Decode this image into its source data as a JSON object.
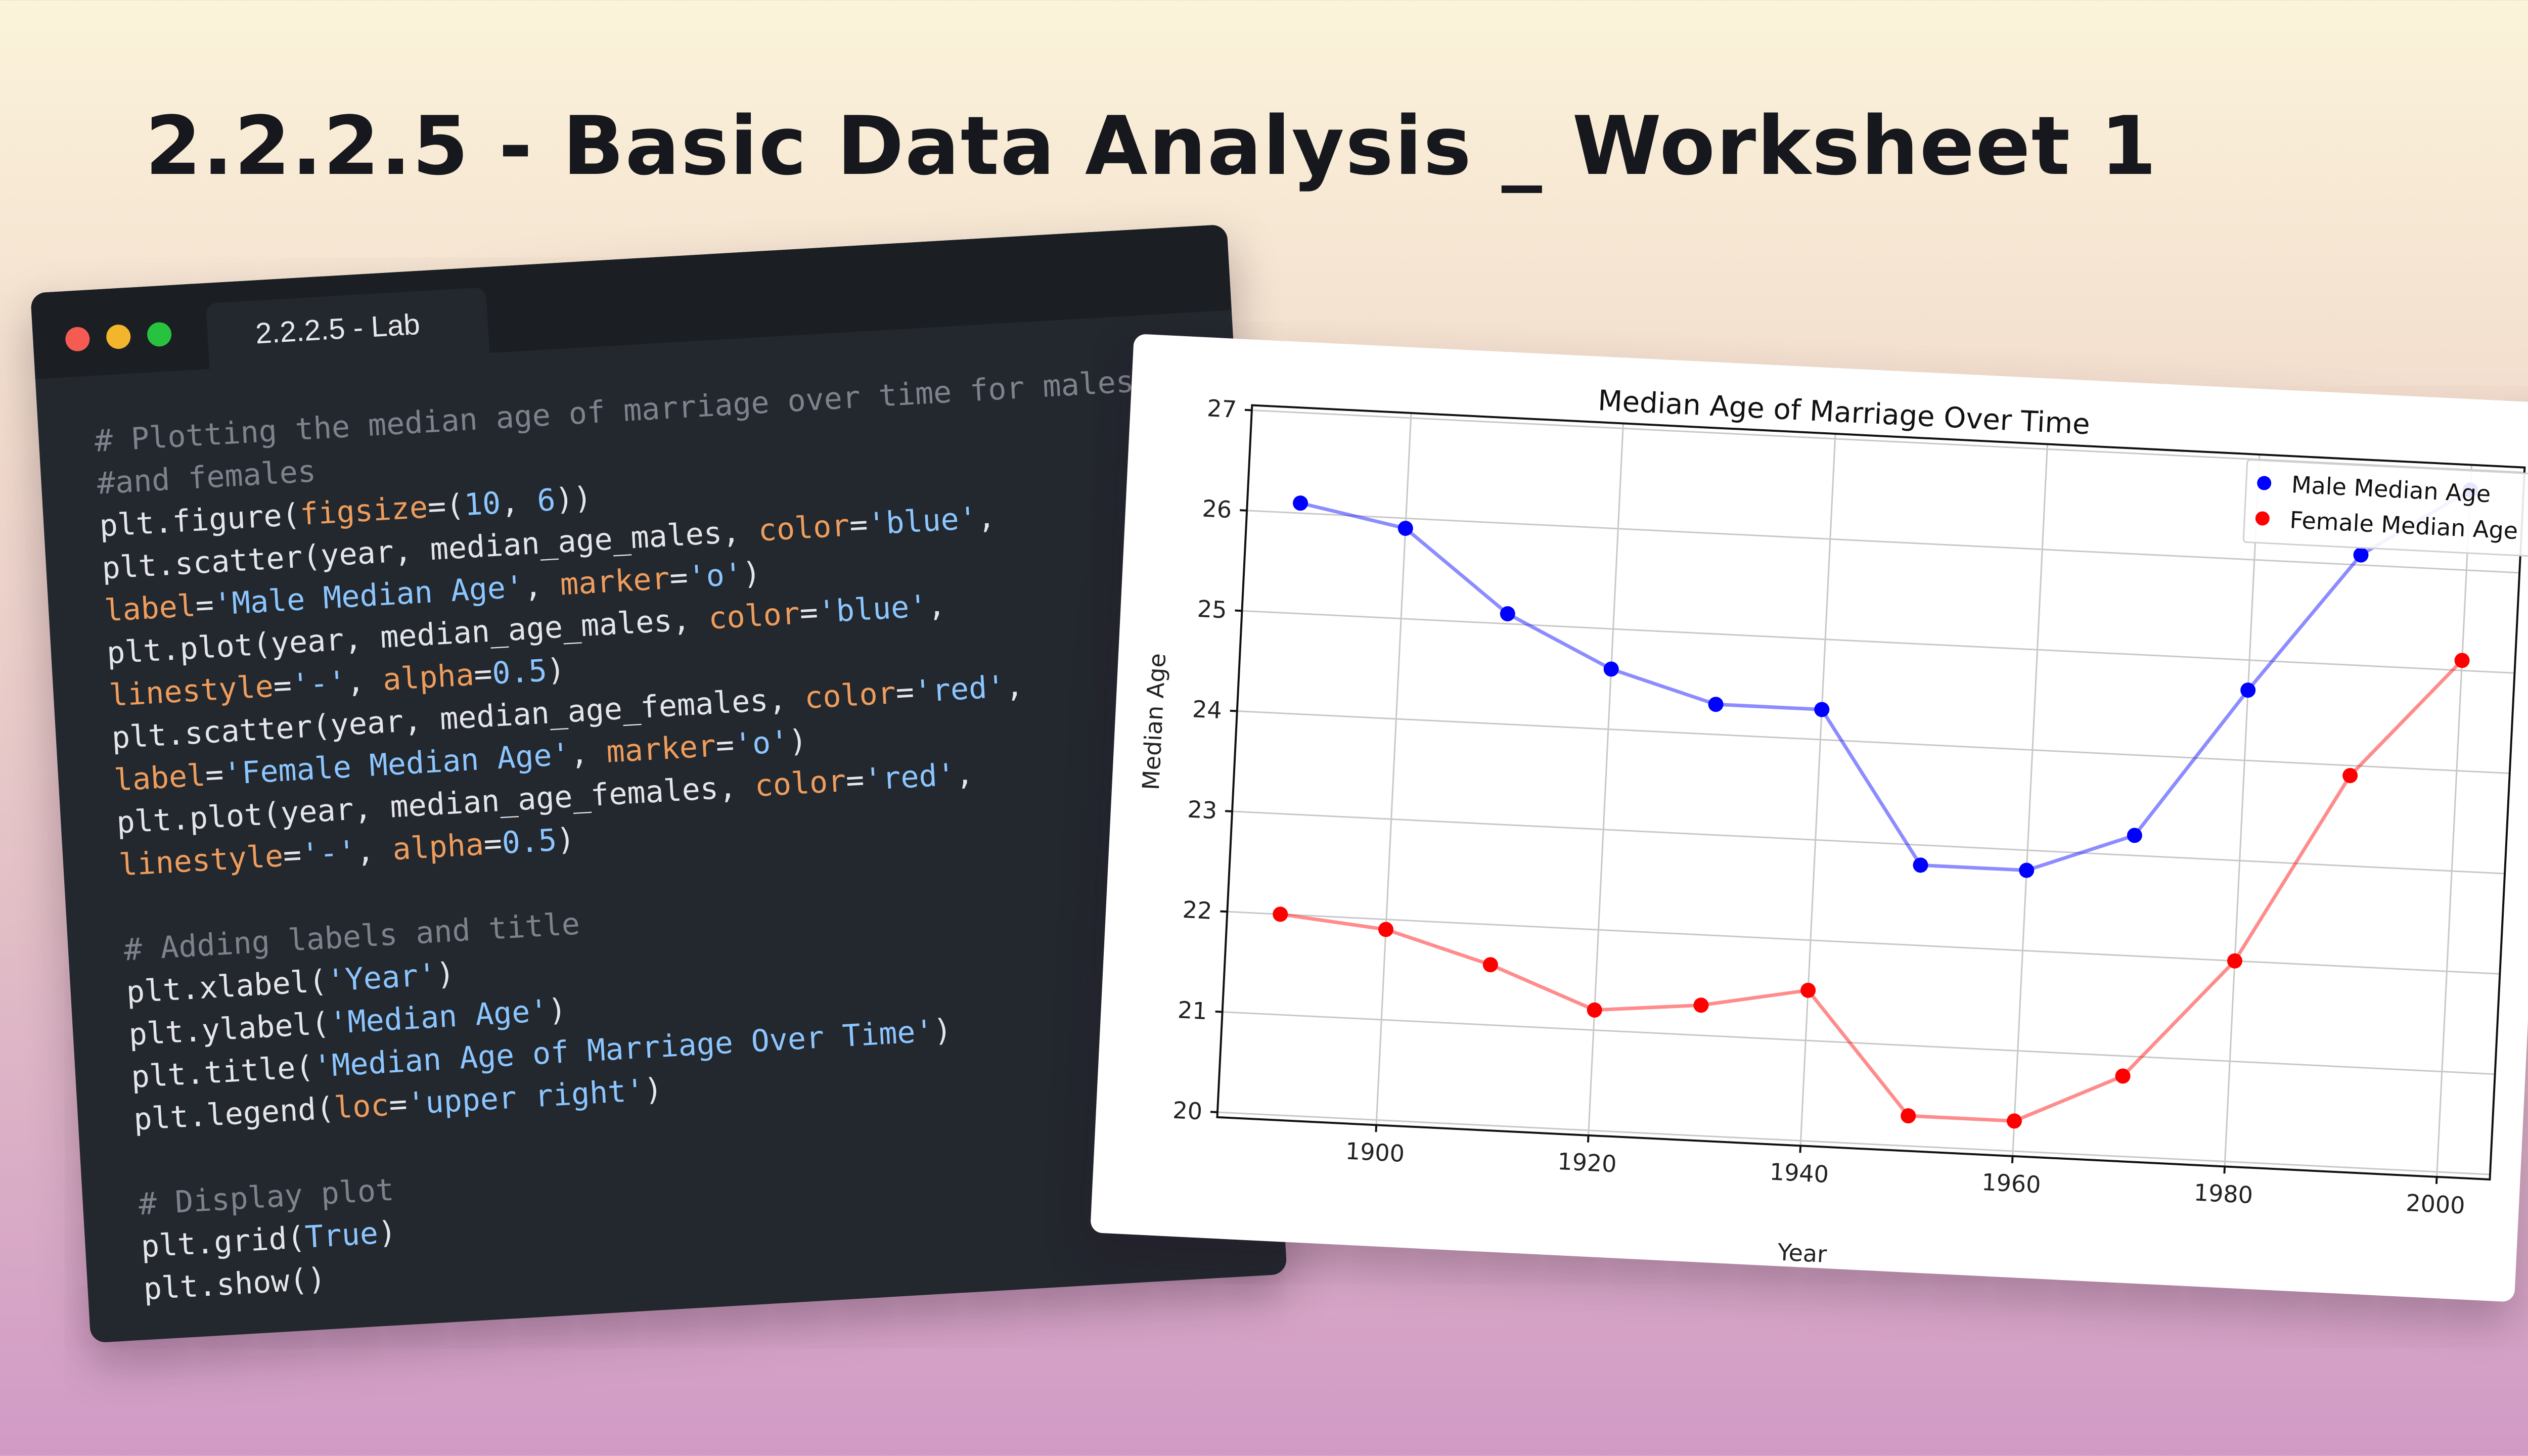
{
  "slide": {
    "title": "2.2.2.5 - Basic Data Analysis _ Worksheet 1"
  },
  "code_window": {
    "tab_label": "2.2.2.5 - Lab",
    "lines": [
      [
        {
          "t": "# Plotting the median age of marriage over time for males",
          "c": "cm"
        }
      ],
      [
        {
          "t": "#and females",
          "c": "cm"
        }
      ],
      [
        {
          "t": "plt.figure(",
          "c": ""
        },
        {
          "t": "figsize",
          "c": "kw"
        },
        {
          "t": "=(",
          "c": ""
        },
        {
          "t": "10",
          "c": "nm"
        },
        {
          "t": ", ",
          "c": ""
        },
        {
          "t": "6",
          "c": "nm"
        },
        {
          "t": "))",
          "c": ""
        }
      ],
      [
        {
          "t": "plt.scatter(year, median_age_males, ",
          "c": ""
        },
        {
          "t": "color",
          "c": "kw"
        },
        {
          "t": "=",
          "c": ""
        },
        {
          "t": "'blue'",
          "c": "st"
        },
        {
          "t": ",",
          "c": ""
        }
      ],
      [
        {
          "t": "label",
          "c": "kw"
        },
        {
          "t": "=",
          "c": ""
        },
        {
          "t": "'Male Median Age'",
          "c": "st"
        },
        {
          "t": ", ",
          "c": ""
        },
        {
          "t": "marker",
          "c": "kw"
        },
        {
          "t": "=",
          "c": ""
        },
        {
          "t": "'o'",
          "c": "st"
        },
        {
          "t": ")",
          "c": ""
        }
      ],
      [
        {
          "t": "plt.plot(year, median_age_males, ",
          "c": ""
        },
        {
          "t": "color",
          "c": "kw"
        },
        {
          "t": "=",
          "c": ""
        },
        {
          "t": "'blue'",
          "c": "st"
        },
        {
          "t": ",",
          "c": ""
        }
      ],
      [
        {
          "t": "linestyle",
          "c": "kw"
        },
        {
          "t": "=",
          "c": ""
        },
        {
          "t": "'-'",
          "c": "st"
        },
        {
          "t": ", ",
          "c": ""
        },
        {
          "t": "alpha",
          "c": "kw"
        },
        {
          "t": "=",
          "c": ""
        },
        {
          "t": "0.5",
          "c": "nm"
        },
        {
          "t": ")",
          "c": ""
        }
      ],
      [
        {
          "t": "plt.scatter(year, median_age_females, ",
          "c": ""
        },
        {
          "t": "color",
          "c": "kw"
        },
        {
          "t": "=",
          "c": ""
        },
        {
          "t": "'red'",
          "c": "st"
        },
        {
          "t": ",",
          "c": ""
        }
      ],
      [
        {
          "t": "label",
          "c": "kw"
        },
        {
          "t": "=",
          "c": ""
        },
        {
          "t": "'Female Median Age'",
          "c": "st"
        },
        {
          "t": ", ",
          "c": ""
        },
        {
          "t": "marker",
          "c": "kw"
        },
        {
          "t": "=",
          "c": ""
        },
        {
          "t": "'o'",
          "c": "st"
        },
        {
          "t": ")",
          "c": ""
        }
      ],
      [
        {
          "t": "plt.plot(year, median_age_females, ",
          "c": ""
        },
        {
          "t": "color",
          "c": "kw"
        },
        {
          "t": "=",
          "c": ""
        },
        {
          "t": "'red'",
          "c": "st"
        },
        {
          "t": ",",
          "c": ""
        }
      ],
      [
        {
          "t": "linestyle",
          "c": "kw"
        },
        {
          "t": "=",
          "c": ""
        },
        {
          "t": "'-'",
          "c": "st"
        },
        {
          "t": ", ",
          "c": ""
        },
        {
          "t": "alpha",
          "c": "kw"
        },
        {
          "t": "=",
          "c": ""
        },
        {
          "t": "0.5",
          "c": "nm"
        },
        {
          "t": ")",
          "c": ""
        }
      ],
      [],
      [
        {
          "t": "# Adding labels and title",
          "c": "cm"
        }
      ],
      [
        {
          "t": "plt.xlabel(",
          "c": ""
        },
        {
          "t": "'Year'",
          "c": "st"
        },
        {
          "t": ")",
          "c": ""
        }
      ],
      [
        {
          "t": "plt.ylabel(",
          "c": ""
        },
        {
          "t": "'Median Age'",
          "c": "st"
        },
        {
          "t": ")",
          "c": ""
        }
      ],
      [
        {
          "t": "plt.title(",
          "c": ""
        },
        {
          "t": "'Median Age of Marriage Over Time'",
          "c": "st"
        },
        {
          "t": ")",
          "c": ""
        }
      ],
      [
        {
          "t": "plt.legend(",
          "c": ""
        },
        {
          "t": "loc",
          "c": "kw"
        },
        {
          "t": "=",
          "c": ""
        },
        {
          "t": "'upper right'",
          "c": "st"
        },
        {
          "t": ")",
          "c": ""
        }
      ],
      [],
      [
        {
          "t": "# Display plot",
          "c": "cm"
        }
      ],
      [
        {
          "t": "plt.grid(",
          "c": ""
        },
        {
          "t": "True",
          "c": "nm"
        },
        {
          "t": ")",
          "c": ""
        }
      ],
      [
        {
          "t": "plt.show()",
          "c": ""
        }
      ]
    ]
  },
  "chart_data": {
    "type": "line",
    "title": "Median Age of Marriage Over Time",
    "xlabel": "Year",
    "ylabel": "Median Age",
    "x": [
      1890,
      1900,
      1910,
      1920,
      1930,
      1940,
      1950,
      1960,
      1970,
      1980,
      1990,
      2000
    ],
    "xlim": [
      1885,
      2005
    ],
    "ylim": [
      19.95,
      27.05
    ],
    "xticks": [
      1900,
      1920,
      1940,
      1960,
      1980,
      2000
    ],
    "yticks": [
      20,
      21,
      22,
      23,
      24,
      25,
      26,
      27
    ],
    "grid": true,
    "legend_position": "upper right",
    "series": [
      {
        "name": "Male Median Age",
        "color": "#0000ff",
        "values": [
          26.1,
          25.9,
          25.1,
          24.6,
          24.3,
          24.3,
          22.8,
          22.8,
          23.2,
          24.7,
          26.1,
          26.8
        ]
      },
      {
        "name": "Female Median Age",
        "color": "#ff0000",
        "values": [
          22.0,
          21.9,
          21.6,
          21.2,
          21.3,
          21.5,
          20.3,
          20.3,
          20.8,
          22.0,
          23.9,
          25.1
        ]
      }
    ]
  }
}
